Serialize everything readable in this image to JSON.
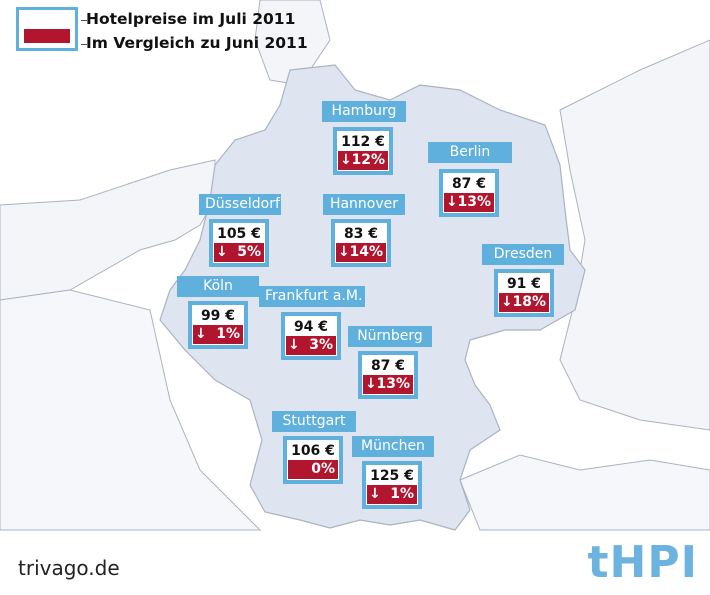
{
  "legend": {
    "current_label": "Hotelpreise im Juli 2011",
    "comparison_label": "Im Vergleich zu Juni 2011"
  },
  "colors": {
    "accent_blue": "#5fb0dc",
    "decline_red": "#b2152e",
    "germany_fill": "#dfe5f0",
    "neighbor_fill": "#f3f5f9",
    "border_line": "#aab3c2"
  },
  "cities": [
    {
      "name": "Hamburg",
      "price": "112 €",
      "arrow": "↓",
      "change": "12%"
    },
    {
      "name": "Berlin",
      "price": "87 €",
      "arrow": "↓",
      "change": "13%"
    },
    {
      "name": "Düsseldorf",
      "price": "105 €",
      "arrow": "↓",
      "change": "5%"
    },
    {
      "name": "Hannover",
      "price": "83 €",
      "arrow": "↓",
      "change": "14%"
    },
    {
      "name": "Dresden",
      "price": "91 €",
      "arrow": "↓",
      "change": "18%"
    },
    {
      "name": "Köln",
      "price": "99 €",
      "arrow": "↓",
      "change": "1%"
    },
    {
      "name": "Frankfurt a.M.",
      "price": "94 €",
      "arrow": "↓",
      "change": "3%"
    },
    {
      "name": "Nürnberg",
      "price": "87 €",
      "arrow": "↓",
      "change": "13%"
    },
    {
      "name": "Stuttgart",
      "price": "106 €",
      "arrow": "",
      "change": "0%"
    },
    {
      "name": "München",
      "price": "125 €",
      "arrow": "↓",
      "change": "1%"
    }
  ],
  "footer": {
    "source": "trivago.de",
    "logo": "tHPI"
  }
}
